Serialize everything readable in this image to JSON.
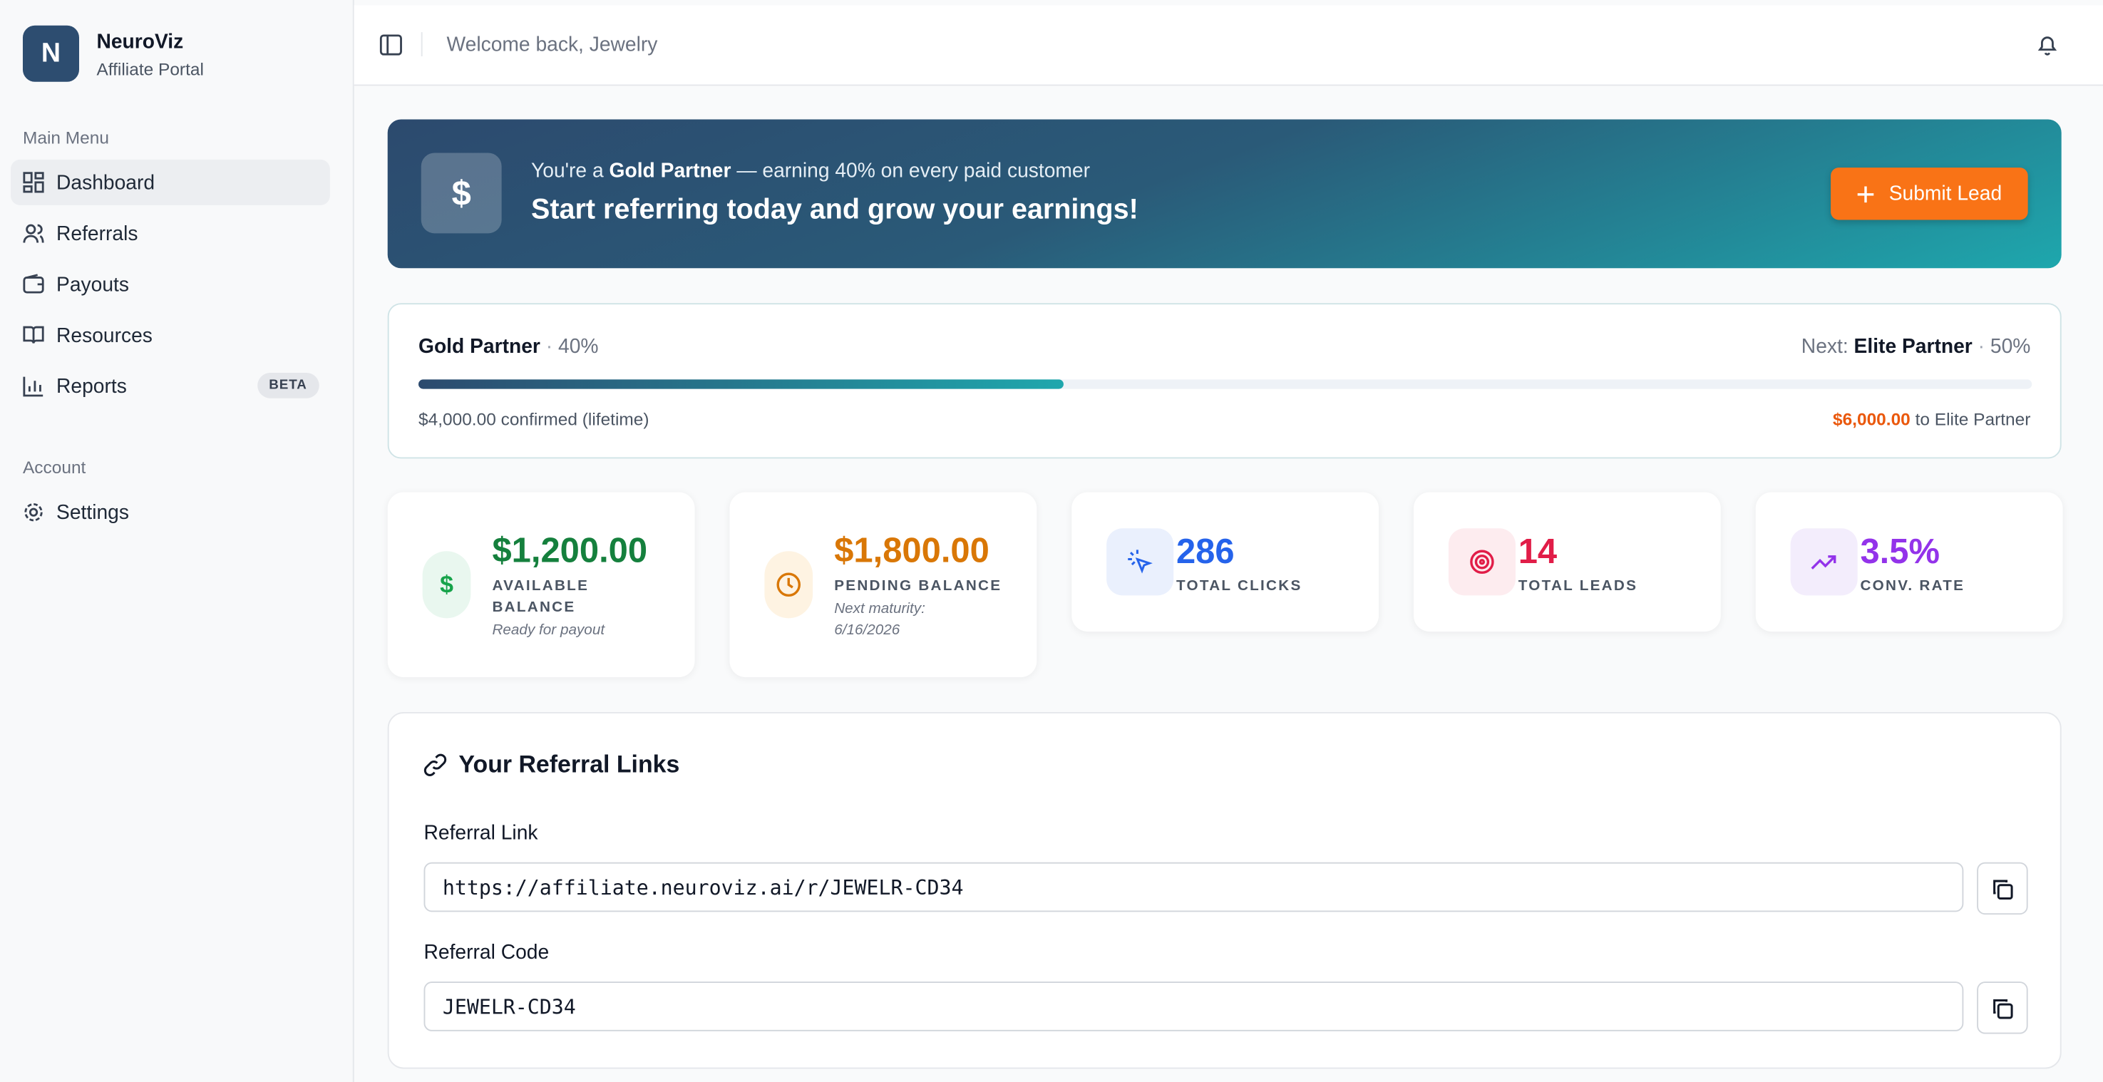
{
  "brand": {
    "logo_letter": "N",
    "name": "NeuroViz",
    "subtitle": "Affiliate Portal"
  },
  "sidebar": {
    "sections": [
      {
        "title": "Main Menu",
        "items": [
          {
            "label": "Dashboard"
          },
          {
            "label": "Referrals"
          },
          {
            "label": "Payouts"
          },
          {
            "label": "Resources"
          },
          {
            "label": "Reports",
            "badge": "BETA"
          }
        ]
      },
      {
        "title": "Account",
        "items": [
          {
            "label": "Settings"
          }
        ]
      }
    ]
  },
  "header": {
    "welcome": "Welcome back, Jewelry"
  },
  "banner": {
    "icon": "$",
    "prefix": "You're a",
    "tier": "Gold Partner",
    "suffix": "— earning 40% on every paid customer",
    "headline": "Start referring today and grow your earnings!",
    "button": "Submit Lead"
  },
  "tier_progress": {
    "current": "Gold Partner",
    "current_rate": "40%",
    "next_label": "Next:",
    "next": "Elite Partner",
    "next_rate": "50%",
    "progress_percent": 40,
    "confirmed": "$4,000.00 confirmed (lifetime)",
    "remaining": "$6,000.00",
    "remaining_suffix": "to Elite Partner"
  },
  "stats": [
    {
      "icon": "$",
      "value": "$1,200.00",
      "label": "AVAILABLE BALANCE",
      "note": "Ready for payout"
    },
    {
      "value": "$1,800.00",
      "label": "PENDING BALANCE",
      "note": "Next maturity: 6/16/2026"
    },
    {
      "value": "286",
      "label": "TOTAL CLICKS"
    },
    {
      "value": "14",
      "label": "TOTAL LEADS"
    },
    {
      "value": "3.5%",
      "label": "CONV. RATE"
    }
  ],
  "referral": {
    "title": "Your Referral Links",
    "fields": [
      {
        "label": "Referral Link",
        "value": "https://affiliate.neuroviz.ai/r/JEWELR-CD34"
      },
      {
        "label": "Referral Code",
        "value": "JEWELR-CD34"
      }
    ]
  }
}
